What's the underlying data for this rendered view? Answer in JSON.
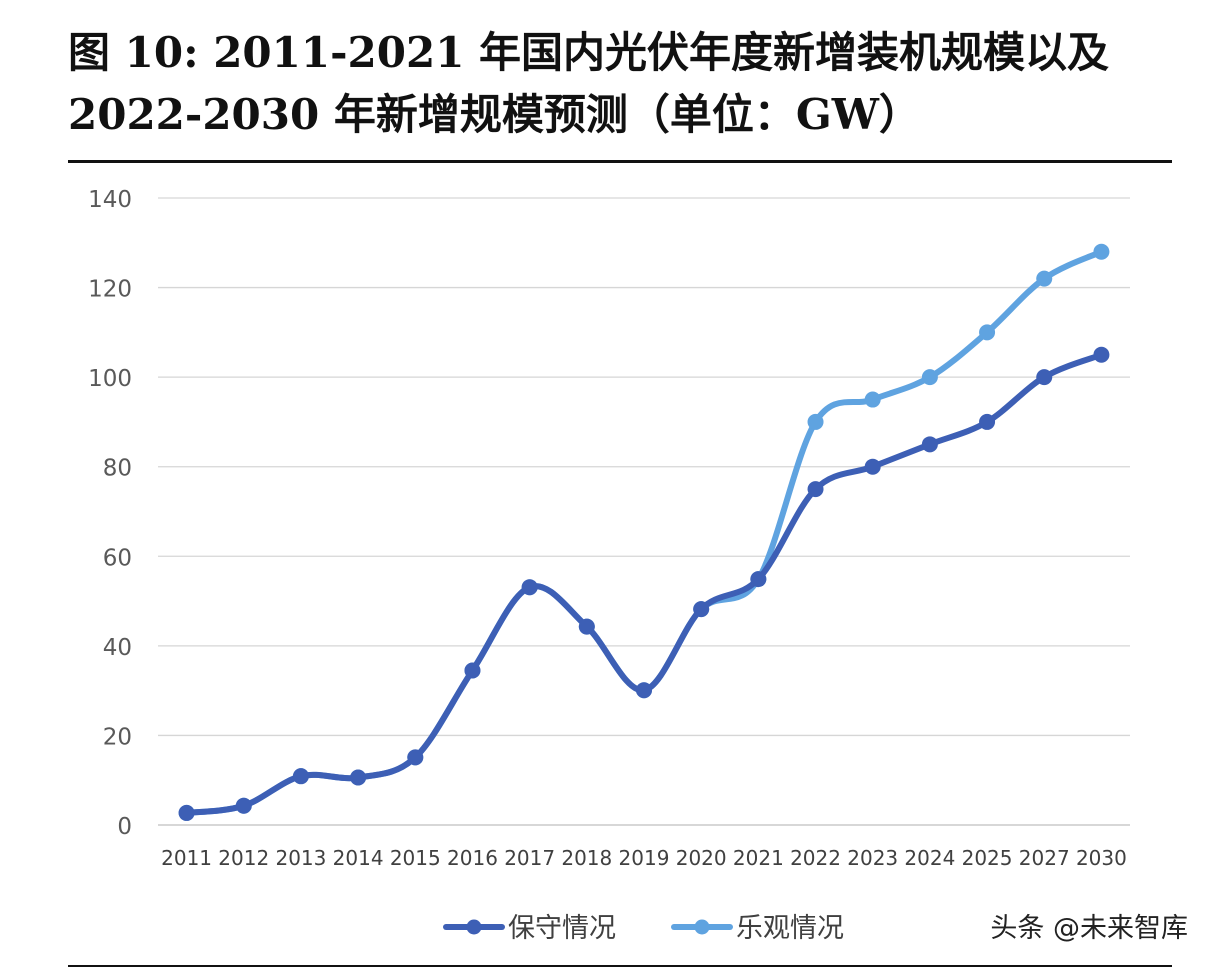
{
  "title_line1": "图 10: 2011-2021 年国内光伏年度新增装机规模以及",
  "title_line2": "2022-2030 年新增规模预测（单位：GW）",
  "watermark": "头条 @未来智库",
  "chart_data": {
    "type": "line",
    "title": "图 10: 2011-2021 年国内光伏年度新增装机规模以及 2022-2030 年新增规模预测（单位：GW）",
    "xlabel": "",
    "ylabel": "",
    "ylim": [
      0,
      140
    ],
    "yticks": [
      0,
      20,
      40,
      60,
      80,
      100,
      120,
      140
    ],
    "grid": true,
    "legend_position": "bottom",
    "categories": [
      "2011",
      "2012",
      "2013",
      "2014",
      "2015",
      "2016",
      "2017",
      "2018",
      "2019",
      "2020",
      "2021",
      "2022",
      "2023",
      "2024",
      "2025",
      "2027",
      "2030"
    ],
    "series": [
      {
        "name": "保守情况",
        "color": "#3d5fb5",
        "values": [
          2.7,
          4.3,
          10.9,
          10.6,
          15.1,
          34.5,
          53.1,
          44.3,
          30.1,
          48.2,
          54.9,
          75,
          80,
          85,
          90,
          100,
          105
        ]
      },
      {
        "name": "乐观情况",
        "color": "#5fa3e0",
        "values": [
          2.7,
          4.3,
          10.9,
          10.6,
          15.1,
          34.5,
          53.1,
          44.3,
          30.1,
          48.2,
          54.9,
          90,
          95,
          100,
          110,
          122,
          128
        ]
      }
    ]
  }
}
